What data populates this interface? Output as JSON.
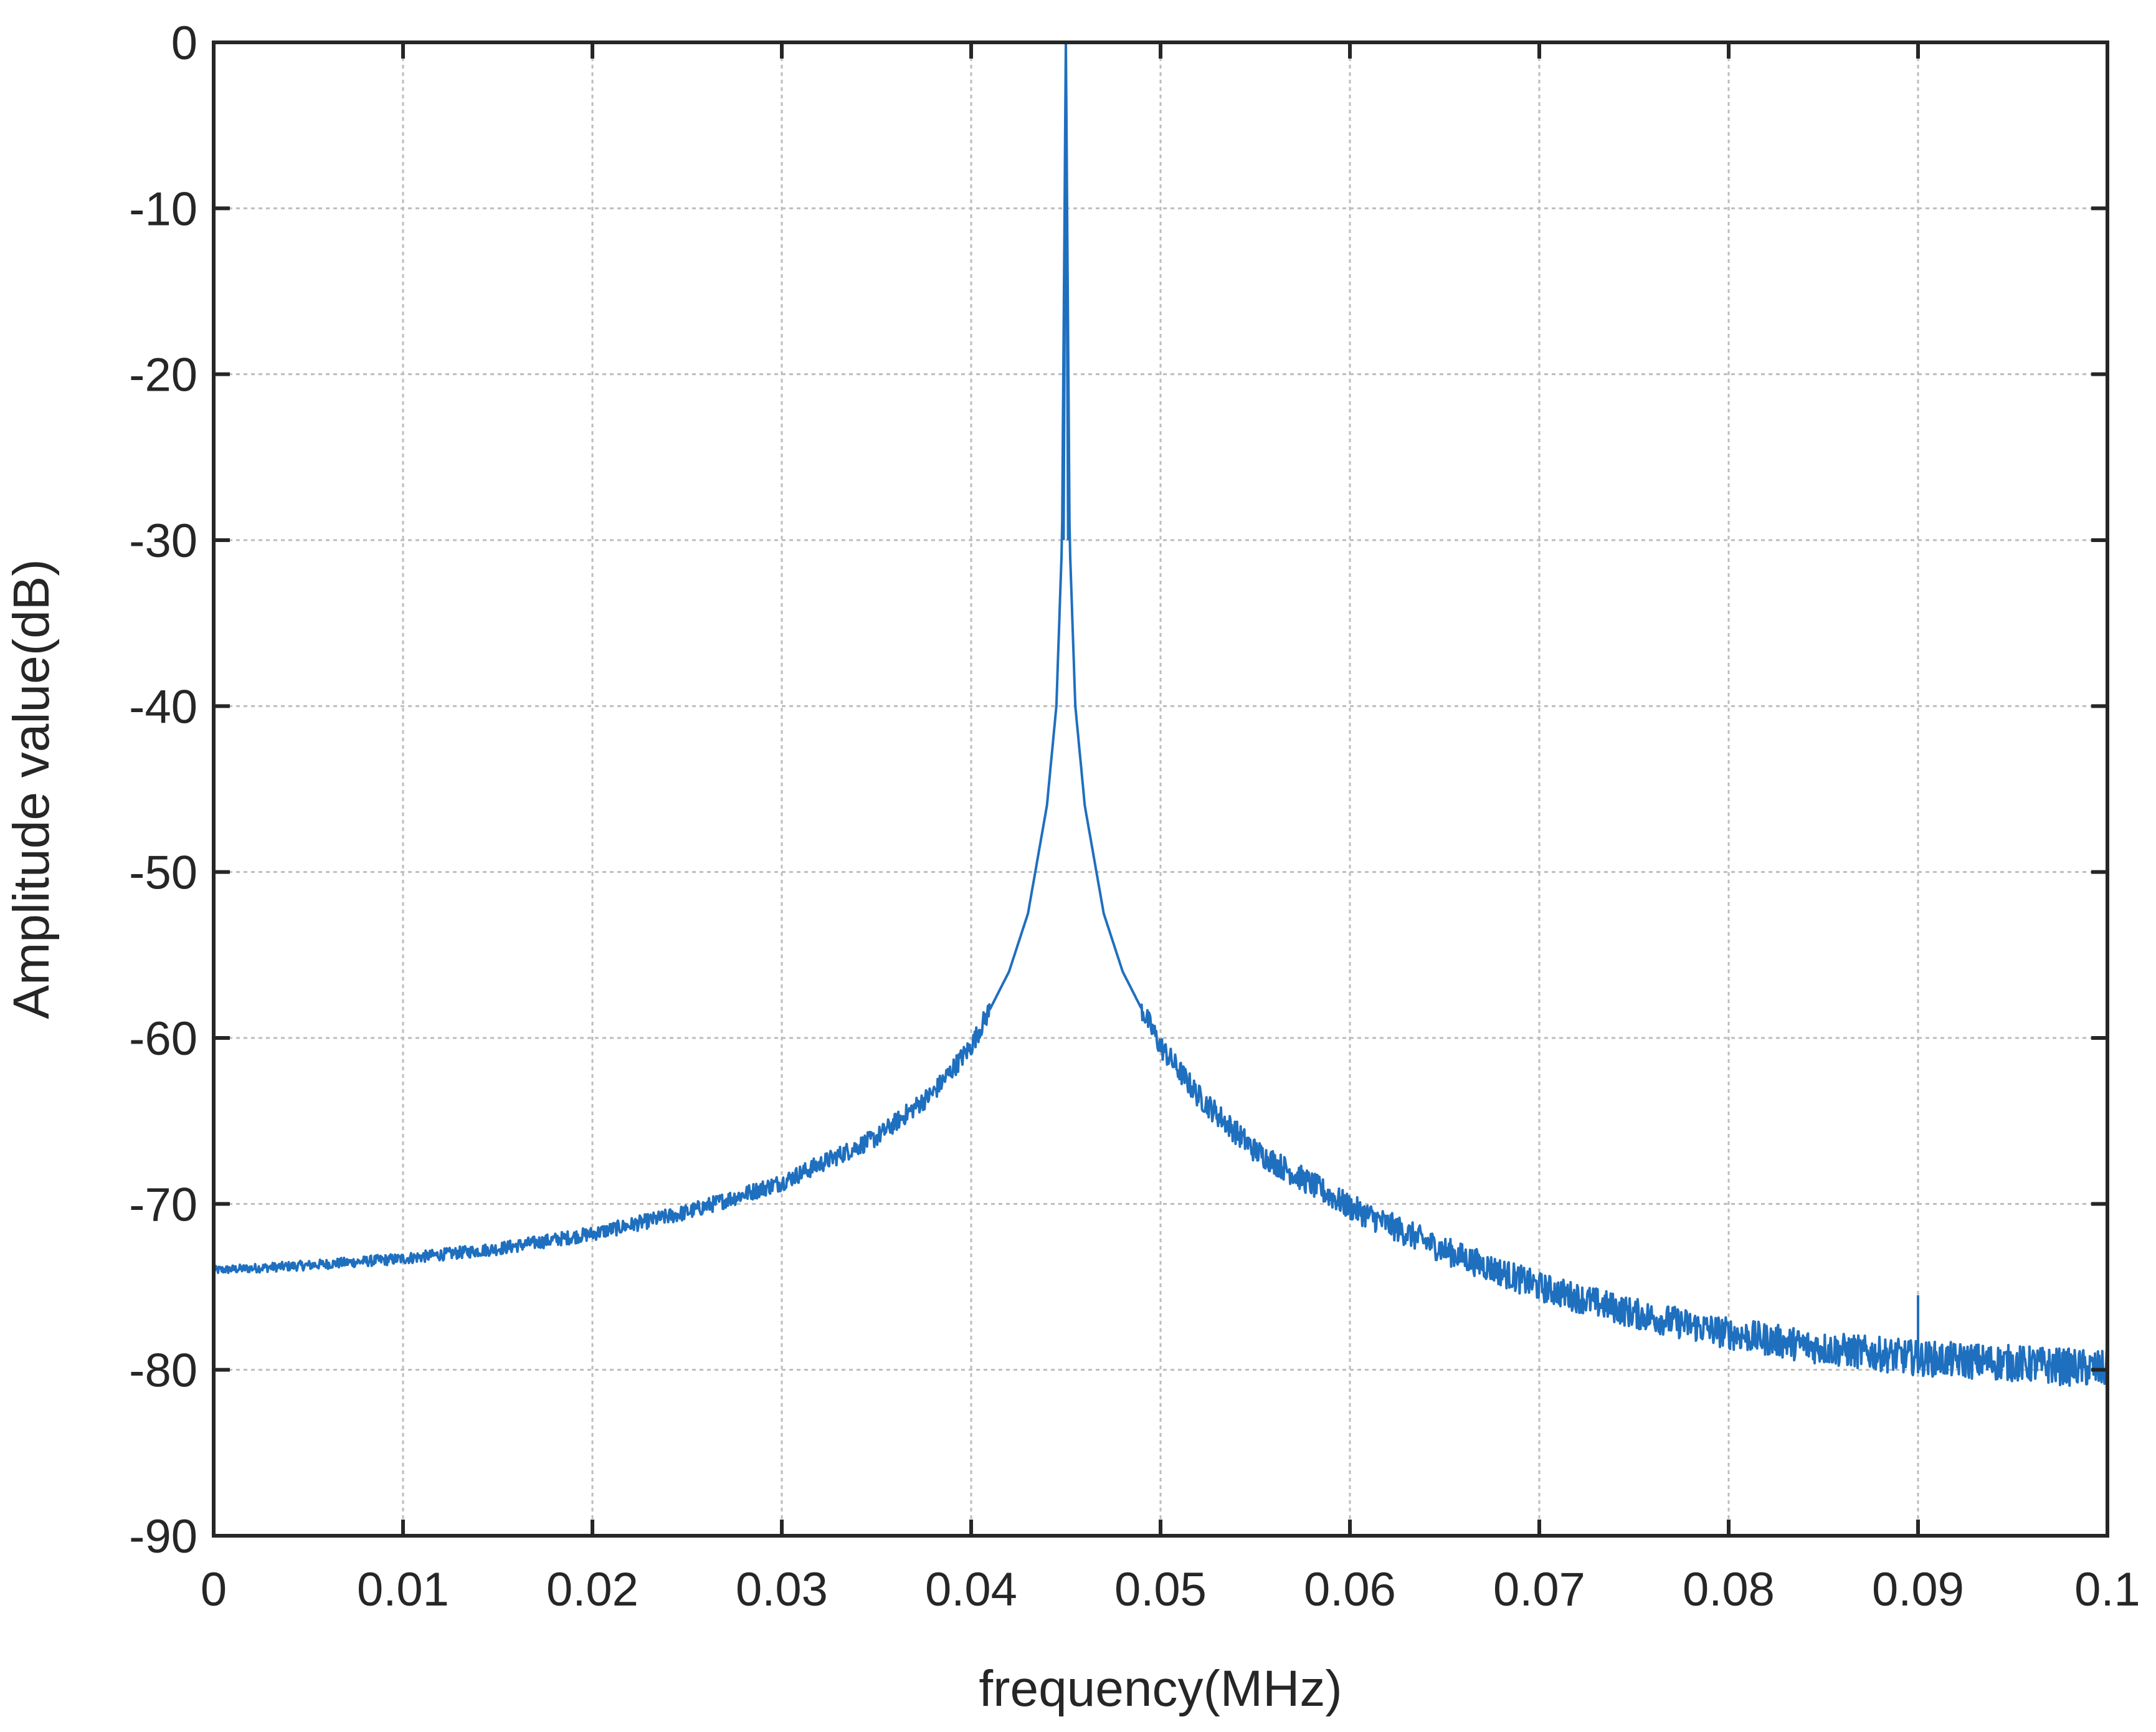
{
  "chart_data": {
    "type": "line",
    "title": "",
    "xlabel": "frequency(MHz)",
    "ylabel": "Amplitude value(dB)",
    "xlim": [
      0,
      0.1
    ],
    "ylim": [
      -90,
      0
    ],
    "xticks": [
      "0",
      "0.01",
      "0.02",
      "0.03",
      "0.04",
      "0.05",
      "0.06",
      "0.07",
      "0.08",
      "0.09",
      "0.1"
    ],
    "yticks": [
      "0",
      "-10",
      "-20",
      "-30",
      "-40",
      "-50",
      "-60",
      "-70",
      "-80",
      "-90"
    ],
    "grid": true,
    "legend": "none",
    "colors": {
      "series": "#1f6fbf",
      "axes": "#262626",
      "grid": "#bdbdbd"
    },
    "series": [
      {
        "color": "#1f6fbf",
        "x": [
          0,
          0.005,
          0.01,
          0.015,
          0.02,
          0.025,
          0.03,
          0.035,
          0.038,
          0.04,
          0.042,
          0.043,
          0.044,
          0.0445,
          0.0448,
          0.045,
          0.0452,
          0.0455,
          0.046,
          0.047,
          0.048,
          0.05,
          0.052,
          0.055,
          0.06,
          0.065,
          0.07,
          0.075,
          0.08,
          0.085,
          0.09,
          0.095,
          0.1
        ],
        "y": [
          -74,
          -73.7,
          -73.3,
          -72.7,
          -71.8,
          -70.5,
          -68.7,
          -66,
          -63.3,
          -60.5,
          -56,
          -52.5,
          -46,
          -40,
          -30,
          0,
          -30,
          -40,
          -46,
          -52.5,
          -56,
          -60.5,
          -63.5,
          -66.8,
          -70.2,
          -72.8,
          -75,
          -76.6,
          -77.8,
          -78.7,
          -79.3,
          -79.6,
          -80
        ]
      }
    ],
    "annotations": [
      {
        "x": 0.09,
        "y": -75.5,
        "type": "spur"
      }
    ]
  }
}
